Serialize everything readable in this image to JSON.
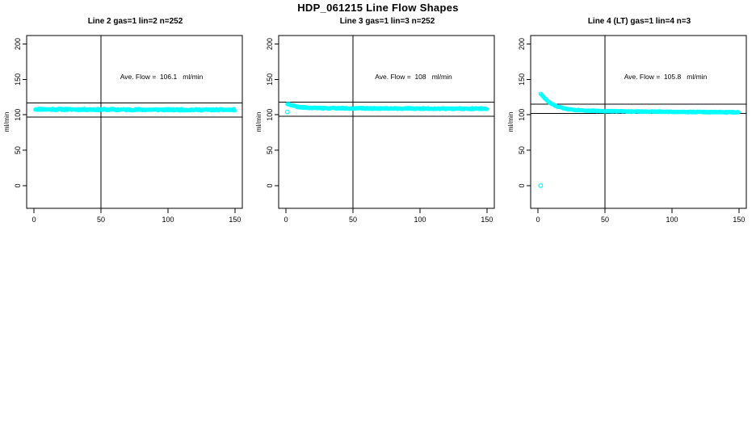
{
  "figure": {
    "title": "HDP_061215  Line Flow Shapes",
    "background": "#ffffff"
  },
  "chart_data": [
    {
      "type": "scatter",
      "title": "Line 2 gas=1 lin=2 n=252",
      "annotation": "Ave. Flow =  106.1   ml/min",
      "ave_flow_ml_min": 106.1,
      "n": 252,
      "xlabel": "",
      "ylabel": "ml/min",
      "xlim": [
        -5.5,
        155.5
      ],
      "ylim": [
        -32,
        212
      ],
      "x_ticks": [
        0,
        50,
        100,
        150
      ],
      "y_ticks": [
        0,
        50,
        100,
        150,
        200
      ],
      "grid": false,
      "vline_x": 50,
      "hlines": [
        117,
        97
      ],
      "point": {
        "shape": "open-circle",
        "color": "#00ffff",
        "radius": 2,
        "stroke_width": 1.2
      },
      "series": {
        "name": "line2-flow",
        "x_start": 1,
        "x_end": 150,
        "x_step": 0.6,
        "jitter": 1.0,
        "seed": 11,
        "shape": [
          [
            1,
            108.0
          ],
          [
            10,
            107.8
          ],
          [
            30,
            107.6
          ],
          [
            60,
            107.4
          ],
          [
            100,
            107.2
          ],
          [
            150,
            107.1
          ]
        ]
      },
      "outliers": []
    },
    {
      "type": "scatter",
      "title": "Line 3 gas=1 lin=3 n=252",
      "annotation": "Ave. Flow =  108   ml/min",
      "ave_flow_ml_min": 108,
      "n": 252,
      "xlabel": "",
      "ylabel": "ml/min",
      "xlim": [
        -5.5,
        155.5
      ],
      "ylim": [
        -32,
        212
      ],
      "x_ticks": [
        0,
        50,
        100,
        150
      ],
      "y_ticks": [
        0,
        50,
        100,
        150,
        200
      ],
      "grid": false,
      "vline_x": 50,
      "hlines": [
        118,
        98
      ],
      "point": {
        "shape": "open-circle",
        "color": "#00ffff",
        "radius": 2,
        "stroke_width": 1.2
      },
      "series": {
        "name": "line3-flow",
        "x_start": 1,
        "x_end": 150,
        "x_step": 0.6,
        "jitter": 0.7,
        "seed": 22,
        "shape": [
          [
            1,
            115.5
          ],
          [
            3,
            114.5
          ],
          [
            5,
            113.0
          ],
          [
            8,
            111.5
          ],
          [
            12,
            110.5
          ],
          [
            18,
            109.8
          ],
          [
            30,
            109.4
          ],
          [
            60,
            109.1
          ],
          [
            100,
            108.9
          ],
          [
            150,
            108.8
          ]
        ]
      },
      "outliers": [
        [
          1,
          104
        ]
      ]
    },
    {
      "type": "scatter",
      "title": "Line 4 (LT) gas=1 lin=4 n=3",
      "annotation": "Ave. Flow =  105.8   ml/min",
      "ave_flow_ml_min": 105.8,
      "n": 3,
      "xlabel": "",
      "ylabel": "ml/min",
      "xlim": [
        -5.5,
        155.5
      ],
      "ylim": [
        -32,
        212
      ],
      "x_ticks": [
        0,
        50,
        100,
        150
      ],
      "y_ticks": [
        0,
        50,
        100,
        150,
        200
      ],
      "grid": false,
      "vline_x": 50,
      "hlines": [
        115,
        102
      ],
      "point": {
        "shape": "open-circle",
        "color": "#00ffff",
        "radius": 2,
        "stroke_width": 1.2
      },
      "series": {
        "name": "line4-flow",
        "x_start": 2,
        "x_end": 150,
        "x_step": 0.6,
        "jitter": 0.55,
        "seed": 33,
        "shape": [
          [
            2,
            130
          ],
          [
            4,
            125.5
          ],
          [
            6,
            121.5
          ],
          [
            8,
            118
          ],
          [
            11,
            114.5
          ],
          [
            14,
            112
          ],
          [
            18,
            109.8
          ],
          [
            23,
            108
          ],
          [
            28,
            107
          ],
          [
            35,
            106.2
          ],
          [
            45,
            105.5
          ],
          [
            60,
            105
          ],
          [
            80,
            104.6
          ],
          [
            105,
            104.2
          ],
          [
            130,
            103.9
          ],
          [
            150,
            103.7
          ]
        ]
      },
      "outliers": [
        [
          2,
          0
        ]
      ]
    }
  ]
}
